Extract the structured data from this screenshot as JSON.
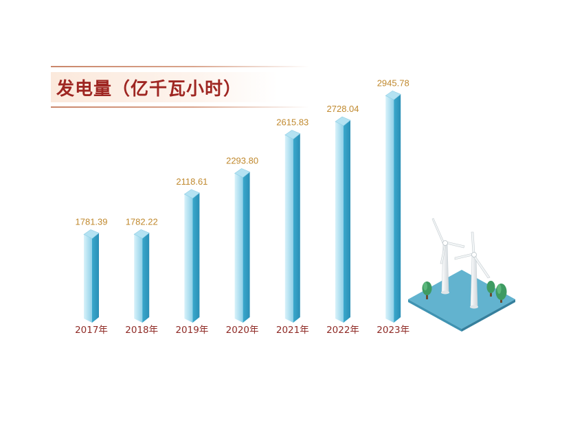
{
  "header": {
    "title": "发电量（亿千瓦小时）"
  },
  "colors": {
    "title": "#9e2622",
    "value_label": "#c0892e",
    "category_label": "#8f2a25",
    "bar_light": "#cfeef8",
    "bar_dark": "#2f9ec4",
    "bar_top": "#a6dcef",
    "platform": "#5fb0cc"
  },
  "illustration": {
    "icons": [
      "wind-turbine-icon",
      "tree-icon"
    ]
  },
  "chart_data": {
    "type": "bar",
    "title": "发电量（亿千瓦小时）",
    "categories": [
      "2017年",
      "2018年",
      "2019年",
      "2020年",
      "2021年",
      "2022年",
      "2023年"
    ],
    "values": [
      1781.39,
      1782.22,
      2118.61,
      2293.8,
      2615.83,
      2728.04,
      2945.78
    ],
    "value_labels": [
      "1781.39",
      "1782.22",
      "2118.61",
      "2293.80",
      "2615.83",
      "2728.04",
      "2945.78"
    ],
    "xlabel": "",
    "ylabel": "",
    "grid": false,
    "legend": "none"
  }
}
